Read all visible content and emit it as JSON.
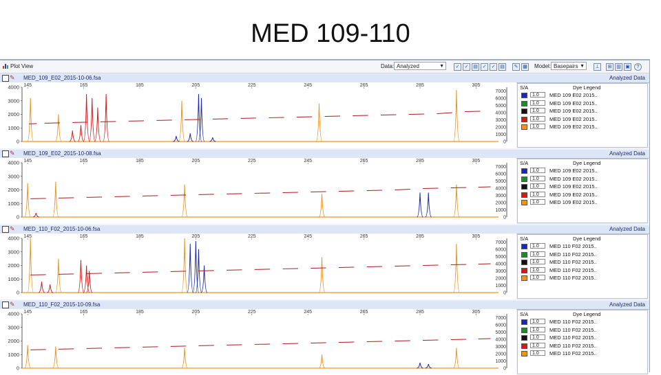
{
  "slide_title": "MED 109-110",
  "toolbar": {
    "plot_view_label": "Plot View",
    "data_label": "Data:",
    "data_value": "Analyzed",
    "model_label": "Model:",
    "model_value": "Basepairs"
  },
  "colors": {
    "blue": "#1b27b0",
    "green": "#1f8a2a",
    "black": "#111111",
    "red": "#d01a1a",
    "orange": "#f0931c"
  },
  "chart_data": [
    {
      "type": "line",
      "file_name": "MED_109_E02_2015-10-06.fsa",
      "status": "Analyzed Data",
      "x_ticks": [
        "145",
        "165",
        "185",
        "205",
        "225",
        "245",
        "265",
        "285",
        "305"
      ],
      "y_ticks": [
        "4000",
        "3000",
        "2000",
        "1000",
        "0"
      ],
      "y2_ticks": [
        "7000",
        "6000",
        "5000",
        "4000",
        "3000",
        "2000",
        "1000",
        "0"
      ],
      "xlim": [
        143,
        313
      ],
      "ylim": [
        0,
        4000
      ],
      "series": [
        {
          "color": "orange",
          "peaks": [
            [
              146,
              3200
            ],
            [
              156,
              2000
            ],
            [
              200,
              3000
            ],
            [
              249,
              2800
            ],
            [
              298,
              3800
            ]
          ]
        },
        {
          "color": "red",
          "peaks": [
            [
              166,
              3500
            ],
            [
              168,
              3200
            ],
            [
              170,
              2500
            ],
            [
              173,
              3500
            ],
            [
              161,
              800
            ],
            [
              164,
              1200
            ]
          ]
        },
        {
          "color": "blue",
          "peaks": [
            [
              206,
              3500
            ],
            [
              207,
              3200
            ],
            [
              198,
              400
            ],
            [
              203,
              600
            ],
            [
              211,
              300
            ]
          ]
        }
      ],
      "sizing_line": [
        [
          145,
          1300
        ],
        [
          150,
          1350
        ],
        [
          160,
          1400
        ],
        [
          170,
          1450
        ],
        [
          180,
          1500
        ],
        [
          190,
          1550
        ],
        [
          200,
          1600
        ],
        [
          210,
          1650
        ],
        [
          220,
          1700
        ],
        [
          230,
          1750
        ],
        [
          240,
          1800
        ],
        [
          250,
          1850
        ],
        [
          260,
          1900
        ],
        [
          270,
          1950
        ],
        [
          280,
          2000
        ],
        [
          290,
          2050
        ],
        [
          300,
          2200
        ],
        [
          310,
          2250
        ]
      ],
      "legend_title": "Dye Legend",
      "legend_col": "S/A",
      "legend": [
        {
          "color": "blue",
          "value": "1.0",
          "name": "MED 109 E02 2015.."
        },
        {
          "color": "green",
          "value": "1.0",
          "name": "MED 109 E02 2015.."
        },
        {
          "color": "black",
          "value": "1.0",
          "name": "MED 109 E02 2015.."
        },
        {
          "color": "red",
          "value": "1.0",
          "name": "MED 109 E02 2015.."
        },
        {
          "color": "orange",
          "value": "1.0",
          "name": "MED 109 E02 2015.."
        }
      ]
    },
    {
      "type": "line",
      "file_name": "MED_109_E02_2015-10-08.fsa",
      "status": "Analyzed Data",
      "x_ticks": [
        "145",
        "165",
        "185",
        "205",
        "225",
        "245",
        "265",
        "285",
        "305"
      ],
      "y_ticks": [
        "4000",
        "3000",
        "2000",
        "1000",
        "0"
      ],
      "y2_ticks": [
        "7000",
        "6000",
        "5000",
        "4000",
        "3000",
        "2000",
        "1000",
        "0"
      ],
      "xlim": [
        143,
        313
      ],
      "ylim": [
        0,
        4000
      ],
      "series": [
        {
          "color": "orange",
          "peaks": [
            [
              145,
              2500
            ],
            [
              155,
              2600
            ],
            [
              201,
              2400
            ],
            [
              250,
              1700
            ],
            [
              298,
              2400
            ]
          ]
        },
        {
          "color": "blue",
          "peaks": [
            [
              285,
              1800
            ],
            [
              288,
              1800
            ]
          ]
        },
        {
          "color": "red",
          "peaks": [
            [
              148,
              300
            ]
          ]
        }
      ],
      "sizing_line": [
        [
          145,
          1350
        ],
        [
          155,
          1400
        ],
        [
          165,
          1450
        ],
        [
          175,
          1500
        ],
        [
          185,
          1550
        ],
        [
          195,
          1600
        ],
        [
          205,
          1650
        ],
        [
          215,
          1700
        ],
        [
          225,
          1750
        ],
        [
          235,
          1800
        ],
        [
          245,
          1850
        ],
        [
          255,
          1900
        ],
        [
          265,
          1950
        ],
        [
          275,
          2000
        ],
        [
          285,
          2100
        ],
        [
          295,
          2150
        ],
        [
          305,
          2200
        ],
        [
          313,
          2250
        ]
      ],
      "legend_title": "Dye Legend",
      "legend_col": "S/A",
      "legend": [
        {
          "color": "blue",
          "value": "1.0",
          "name": "MED 109 E02 2015.."
        },
        {
          "color": "green",
          "value": "1.0",
          "name": "MED 109 E02 2015.."
        },
        {
          "color": "black",
          "value": "1.0",
          "name": "MED 109 E02 2015.."
        },
        {
          "color": "red",
          "value": "1.0",
          "name": "MED 109 E02 2015.."
        },
        {
          "color": "orange",
          "value": "1.0",
          "name": "MED 109 E02 2015.."
        }
      ]
    },
    {
      "type": "line",
      "file_name": "MED_110_F02_2015-10-06.fsa",
      "status": "Analyzed Data",
      "x_ticks": [
        "145",
        "165",
        "185",
        "205",
        "225",
        "245",
        "265",
        "285",
        "305"
      ],
      "y_ticks": [
        "4000",
        "3000",
        "2000",
        "1000",
        "0"
      ],
      "y2_ticks": [
        "7000",
        "6000",
        "5000",
        "4000",
        "3000",
        "2000",
        "1000",
        "0"
      ],
      "xlim": [
        143,
        313
      ],
      "ylim": [
        0,
        4000
      ],
      "series": [
        {
          "color": "orange",
          "peaks": [
            [
              146,
              4000
            ],
            [
              156,
              2500
            ],
            [
              201,
              4000
            ],
            [
              250,
              2600
            ],
            [
              298,
              3600
            ]
          ]
        },
        {
          "color": "red",
          "peaks": [
            [
              164,
              2400
            ],
            [
              166,
              2000
            ],
            [
              167,
              1600
            ],
            [
              150,
              800
            ],
            [
              153,
              600
            ]
          ]
        },
        {
          "color": "blue",
          "peaks": [
            [
              203,
              3600
            ],
            [
              205,
              3800
            ],
            [
              206,
              3200
            ],
            [
              208,
              2000
            ]
          ]
        }
      ],
      "sizing_line": [
        [
          145,
          1300
        ],
        [
          155,
          1350
        ],
        [
          165,
          1400
        ],
        [
          175,
          1450
        ],
        [
          185,
          1500
        ],
        [
          195,
          1550
        ],
        [
          205,
          1600
        ],
        [
          215,
          1650
        ],
        [
          225,
          1700
        ],
        [
          235,
          1750
        ],
        [
          245,
          1800
        ],
        [
          255,
          1850
        ],
        [
          265,
          1900
        ],
        [
          275,
          1950
        ],
        [
          285,
          2000
        ],
        [
          295,
          2050
        ],
        [
          305,
          2100
        ],
        [
          313,
          2150
        ]
      ],
      "legend_title": "Dye Legend",
      "legend_col": "S/A",
      "legend": [
        {
          "color": "blue",
          "value": "1.0",
          "name": "MED 110 F02 2015.."
        },
        {
          "color": "green",
          "value": "1.0",
          "name": "MED 110 F02 2015.."
        },
        {
          "color": "black",
          "value": "1.0",
          "name": "MED 110 F02 2015.."
        },
        {
          "color": "red",
          "value": "1.0",
          "name": "MED 110 F02 2015.."
        },
        {
          "color": "orange",
          "value": "1.0",
          "name": "MED 110 F02 2015.."
        }
      ]
    },
    {
      "type": "line",
      "file_name": "MED_110_F02_2015-10-09.fsa",
      "status": "Analyzed Data",
      "x_ticks": [
        "145",
        "165",
        "185",
        "205",
        "225",
        "245",
        "265",
        "285",
        "305"
      ],
      "y_ticks": [
        "4000",
        "3000",
        "2000",
        "1000",
        "0"
      ],
      "y2_ticks": [
        "7000",
        "6000",
        "5000",
        "4000",
        "3000",
        "2000",
        "1000",
        "0"
      ],
      "xlim": [
        143,
        313
      ],
      "ylim": [
        0,
        4000
      ],
      "series": [
        {
          "color": "orange",
          "peaks": [
            [
              145,
              1700
            ],
            [
              155,
              1600
            ],
            [
              201,
              1500
            ],
            [
              250,
              1000
            ],
            [
              298,
              1500
            ]
          ]
        },
        {
          "color": "blue",
          "peaks": [
            [
              285,
              400
            ],
            [
              288,
              300
            ]
          ]
        }
      ],
      "sizing_line": [
        [
          145,
          1350
        ],
        [
          155,
          1400
        ],
        [
          165,
          1450
        ],
        [
          175,
          1500
        ],
        [
          185,
          1550
        ],
        [
          195,
          1600
        ],
        [
          205,
          1650
        ],
        [
          215,
          1700
        ],
        [
          225,
          1750
        ],
        [
          235,
          1800
        ],
        [
          245,
          1850
        ],
        [
          255,
          1900
        ],
        [
          265,
          1950
        ],
        [
          275,
          2000
        ],
        [
          285,
          2050
        ],
        [
          295,
          2100
        ],
        [
          305,
          2150
        ],
        [
          313,
          2200
        ]
      ],
      "legend_title": "Dye Legend",
      "legend_col": "S/A",
      "legend": [
        {
          "color": "blue",
          "value": "1.0",
          "name": "MED 110 F02 2015.."
        },
        {
          "color": "green",
          "value": "1.0",
          "name": "MED 110 F02 2015.."
        },
        {
          "color": "black",
          "value": "1.0",
          "name": "MED 110 F02 2015.."
        },
        {
          "color": "red",
          "value": "1.0",
          "name": "MED 110 F02 2015.."
        },
        {
          "color": "orange",
          "value": "1.0",
          "name": "MED 110 F02 2015.."
        }
      ]
    }
  ]
}
